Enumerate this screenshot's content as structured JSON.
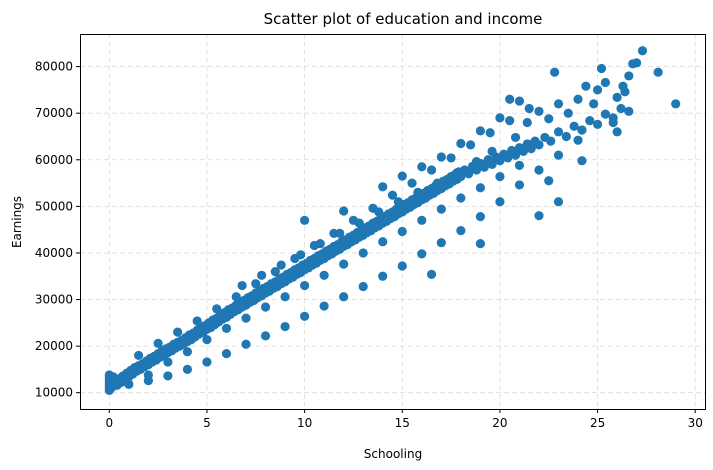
{
  "chart_data": {
    "type": "scatter",
    "title": "Scatter plot of education and income",
    "xlabel": "Schooling",
    "ylabel": "Earnings",
    "xlim": [
      -1.5,
      30.5
    ],
    "ylim": [
      6500,
      87000
    ],
    "xticks": [
      0,
      5,
      10,
      15,
      20,
      25,
      30
    ],
    "yticks": [
      10000,
      20000,
      30000,
      40000,
      50000,
      60000,
      70000,
      80000
    ],
    "grid": true,
    "color": "#1f77b4",
    "points": [
      [
        0,
        10500
      ],
      [
        0,
        11200
      ],
      [
        0,
        11800
      ],
      [
        0,
        12500
      ],
      [
        0,
        13200
      ],
      [
        0,
        13800
      ],
      [
        0.1,
        11000
      ],
      [
        0.1,
        12800
      ],
      [
        0.2,
        12000
      ],
      [
        0.2,
        13400
      ],
      [
        0.3,
        12600
      ],
      [
        0.4,
        11600
      ],
      [
        0.5,
        13000
      ],
      [
        0.6,
        12200
      ],
      [
        0.7,
        13600
      ],
      [
        0.8,
        12900
      ],
      [
        0.9,
        14200
      ],
      [
        1.0,
        13400
      ],
      [
        1.1,
        14800
      ],
      [
        1.2,
        14000
      ],
      [
        1.3,
        15400
      ],
      [
        1.4,
        14600
      ],
      [
        1.5,
        15800
      ],
      [
        1.6,
        15000
      ],
      [
        1.7,
        16200
      ],
      [
        1.8,
        15600
      ],
      [
        1.9,
        16800
      ],
      [
        2.0,
        16000
      ],
      [
        2.1,
        17400
      ],
      [
        2.2,
        16600
      ],
      [
        2.3,
        17800
      ],
      [
        2.4,
        17000
      ],
      [
        2.5,
        18400
      ],
      [
        2.6,
        17600
      ],
      [
        2.7,
        19000
      ],
      [
        2.8,
        18000
      ],
      [
        2.9,
        19400
      ],
      [
        3.0,
        18600
      ],
      [
        3.1,
        19800
      ],
      [
        3.2,
        19000
      ],
      [
        3.3,
        20400
      ],
      [
        3.4,
        19600
      ],
      [
        3.5,
        20800
      ],
      [
        3.6,
        20000
      ],
      [
        3.7,
        21200
      ],
      [
        3.8,
        20400
      ],
      [
        3.9,
        21800
      ],
      [
        4.0,
        21000
      ],
      [
        4.1,
        22400
      ],
      [
        4.2,
        21400
      ],
      [
        4.3,
        22800
      ],
      [
        4.4,
        22000
      ],
      [
        4.5,
        23400
      ],
      [
        4.6,
        22600
      ],
      [
        4.7,
        24000
      ],
      [
        4.8,
        23000
      ],
      [
        4.9,
        24400
      ],
      [
        5.0,
        23600
      ],
      [
        5.1,
        25000
      ],
      [
        5.2,
        24000
      ],
      [
        5.3,
        25600
      ],
      [
        5.4,
        24600
      ],
      [
        5.5,
        26000
      ],
      [
        5.6,
        25200
      ],
      [
        5.7,
        26600
      ],
      [
        5.8,
        25800
      ],
      [
        5.9,
        27200
      ],
      [
        6.0,
        26200
      ],
      [
        6.1,
        27800
      ],
      [
        6.2,
        26800
      ],
      [
        6.3,
        28200
      ],
      [
        6.4,
        27400
      ],
      [
        6.5,
        28800
      ],
      [
        6.6,
        27800
      ],
      [
        6.7,
        29400
      ],
      [
        6.8,
        28400
      ],
      [
        6.9,
        29800
      ],
      [
        7.0,
        28800
      ],
      [
        7.1,
        30400
      ],
      [
        7.2,
        29400
      ],
      [
        7.3,
        30800
      ],
      [
        7.4,
        29800
      ],
      [
        7.5,
        31400
      ],
      [
        7.6,
        30400
      ],
      [
        7.7,
        31800
      ],
      [
        7.8,
        30800
      ],
      [
        7.9,
        32400
      ],
      [
        8.0,
        31400
      ],
      [
        8.1,
        32800
      ],
      [
        8.2,
        31800
      ],
      [
        8.3,
        33400
      ],
      [
        8.4,
        32400
      ],
      [
        8.5,
        33800
      ],
      [
        8.6,
        32800
      ],
      [
        8.7,
        34400
      ],
      [
        8.8,
        33400
      ],
      [
        8.9,
        34800
      ],
      [
        9.0,
        33800
      ],
      [
        9.1,
        35400
      ],
      [
        9.2,
        34400
      ],
      [
        9.3,
        35800
      ],
      [
        9.4,
        34800
      ],
      [
        9.5,
        36400
      ],
      [
        9.6,
        35400
      ],
      [
        9.7,
        36800
      ],
      [
        9.8,
        35800
      ],
      [
        9.9,
        37400
      ],
      [
        10.0,
        36400
      ],
      [
        10.1,
        37800
      ],
      [
        10.2,
        36800
      ],
      [
        10.3,
        38400
      ],
      [
        10.4,
        37400
      ],
      [
        10.5,
        38800
      ],
      [
        10.6,
        37800
      ],
      [
        10.7,
        39400
      ],
      [
        10.8,
        38400
      ],
      [
        10.9,
        39800
      ],
      [
        11.0,
        38800
      ],
      [
        11.1,
        40400
      ],
      [
        11.2,
        39400
      ],
      [
        11.3,
        40800
      ],
      [
        11.4,
        39800
      ],
      [
        11.5,
        41400
      ],
      [
        11.6,
        40400
      ],
      [
        11.7,
        41800
      ],
      [
        11.8,
        40800
      ],
      [
        11.9,
        42400
      ],
      [
        12.0,
        41400
      ],
      [
        12.1,
        42800
      ],
      [
        12.2,
        41800
      ],
      [
        12.3,
        43400
      ],
      [
        12.4,
        42400
      ],
      [
        12.5,
        43800
      ],
      [
        12.6,
        42800
      ],
      [
        12.7,
        44400
      ],
      [
        12.8,
        43400
      ],
      [
        12.9,
        44800
      ],
      [
        13.0,
        43800
      ],
      [
        13.1,
        45400
      ],
      [
        13.2,
        44400
      ],
      [
        13.3,
        45800
      ],
      [
        13.4,
        44800
      ],
      [
        13.5,
        46400
      ],
      [
        13.6,
        45400
      ],
      [
        13.7,
        46800
      ],
      [
        13.8,
        45800
      ],
      [
        13.9,
        47400
      ],
      [
        14.0,
        46400
      ],
      [
        14.1,
        47800
      ],
      [
        14.2,
        46800
      ],
      [
        14.3,
        48400
      ],
      [
        14.4,
        47400
      ],
      [
        14.5,
        48800
      ],
      [
        14.6,
        47800
      ],
      [
        14.7,
        49400
      ],
      [
        14.8,
        48400
      ],
      [
        14.9,
        49800
      ],
      [
        15.0,
        48800
      ],
      [
        15.1,
        50400
      ],
      [
        15.2,
        49400
      ],
      [
        15.3,
        50800
      ],
      [
        15.4,
        49800
      ],
      [
        15.5,
        51400
      ],
      [
        15.6,
        50400
      ],
      [
        15.7,
        51800
      ],
      [
        15.8,
        50800
      ],
      [
        15.9,
        52400
      ],
      [
        16.0,
        51400
      ],
      [
        16.1,
        52800
      ],
      [
        16.2,
        51800
      ],
      [
        16.3,
        53400
      ],
      [
        16.4,
        52400
      ],
      [
        16.5,
        53800
      ],
      [
        16.6,
        52800
      ],
      [
        16.7,
        54400
      ],
      [
        16.8,
        53400
      ],
      [
        16.9,
        54800
      ],
      [
        17.0,
        53800
      ],
      [
        17.1,
        55400
      ],
      [
        17.2,
        54400
      ],
      [
        17.3,
        55800
      ],
      [
        17.4,
        54800
      ],
      [
        17.5,
        56400
      ],
      [
        17.6,
        55400
      ],
      [
        17.7,
        56800
      ],
      [
        17.8,
        55800
      ],
      [
        17.9,
        57400
      ],
      [
        18.0,
        56400
      ],
      [
        18.2,
        57800
      ],
      [
        18.4,
        57000
      ],
      [
        18.6,
        58600
      ],
      [
        18.8,
        57800
      ],
      [
        19.0,
        59200
      ],
      [
        19.2,
        58400
      ],
      [
        19.4,
        60000
      ],
      [
        19.6,
        59000
      ],
      [
        19.8,
        60600
      ],
      [
        20.0,
        59800
      ],
      [
        20.2,
        61200
      ],
      [
        20.4,
        60400
      ],
      [
        20.6,
        62000
      ],
      [
        20.8,
        61000
      ],
      [
        21.0,
        62600
      ],
      [
        21.2,
        61800
      ],
      [
        21.4,
        63400
      ],
      [
        21.6,
        62400
      ],
      [
        21.8,
        64000
      ],
      [
        22.0,
        63200
      ],
      [
        22.3,
        64800
      ],
      [
        22.6,
        64000
      ],
      [
        23.0,
        66000
      ],
      [
        23.4,
        65000
      ],
      [
        23.8,
        67200
      ],
      [
        24.2,
        66400
      ],
      [
        24.6,
        68400
      ],
      [
        25.0,
        67600
      ],
      [
        25.4,
        69800
      ],
      [
        25.8,
        69000
      ],
      [
        26.2,
        71000
      ],
      [
        26.6,
        70400
      ],
      [
        2.0,
        13800
      ],
      [
        3.0,
        16600
      ],
      [
        4.0,
        18800
      ],
      [
        5.0,
        21400
      ],
      [
        6.0,
        23800
      ],
      [
        7.0,
        26000
      ],
      [
        8.0,
        28400
      ],
      [
        9.0,
        30600
      ],
      [
        10.0,
        33000
      ],
      [
        11.0,
        35200
      ],
      [
        12.0,
        37600
      ],
      [
        13.0,
        40000
      ],
      [
        14.0,
        42400
      ],
      [
        15.0,
        44600
      ],
      [
        16.0,
        47000
      ],
      [
        17.0,
        49400
      ],
      [
        18.0,
        51800
      ],
      [
        19.0,
        54000
      ],
      [
        20.0,
        56400
      ],
      [
        21.0,
        58800
      ],
      [
        1.5,
        18000
      ],
      [
        2.5,
        20600
      ],
      [
        3.5,
        23000
      ],
      [
        4.5,
        25400
      ],
      [
        5.5,
        28000
      ],
      [
        6.5,
        30600
      ],
      [
        7.5,
        33400
      ],
      [
        8.5,
        36000
      ],
      [
        9.5,
        38800
      ],
      [
        10.5,
        41600
      ],
      [
        11.5,
        44200
      ],
      [
        12.5,
        47000
      ],
      [
        13.5,
        49600
      ],
      [
        14.5,
        52400
      ],
      [
        15.5,
        55000
      ],
      [
        16.5,
        57800
      ],
      [
        17.5,
        60400
      ],
      [
        18.5,
        63200
      ],
      [
        19.5,
        65800
      ],
      [
        20.5,
        68400
      ],
      [
        10.0,
        47000
      ],
      [
        12.0,
        49000
      ],
      [
        14.0,
        54200
      ],
      [
        15.0,
        56500
      ],
      [
        16.0,
        58500
      ],
      [
        17.0,
        60600
      ],
      [
        18.0,
        63500
      ],
      [
        19.0,
        66200
      ],
      [
        20.0,
        69000
      ],
      [
        20.5,
        73000
      ],
      [
        21.0,
        72600
      ],
      [
        21.5,
        71000
      ],
      [
        22.0,
        70400
      ],
      [
        22.5,
        68800
      ],
      [
        23.0,
        72000
      ],
      [
        23.5,
        70000
      ],
      [
        24.0,
        73000
      ],
      [
        24.4,
        75800
      ],
      [
        25.0,
        75000
      ],
      [
        25.4,
        76600
      ],
      [
        24.0,
        64200
      ],
      [
        23.0,
        61000
      ],
      [
        22.0,
        57800
      ],
      [
        21.0,
        54600
      ],
      [
        20.0,
        51000
      ],
      [
        19.0,
        47800
      ],
      [
        18.0,
        44800
      ],
      [
        17.0,
        42200
      ],
      [
        16.0,
        39800
      ],
      [
        15.0,
        37200
      ],
      [
        14.0,
        35000
      ],
      [
        13.0,
        32800
      ],
      [
        12.0,
        30600
      ],
      [
        11.0,
        28600
      ],
      [
        10.0,
        26400
      ],
      [
        9.0,
        24200
      ],
      [
        8.0,
        22200
      ],
      [
        7.0,
        20400
      ],
      [
        6.0,
        18400
      ],
      [
        5.0,
        16600
      ],
      [
        4.0,
        15000
      ],
      [
        3.0,
        13600
      ],
      [
        2.0,
        12600
      ],
      [
        1.0,
        11800
      ],
      [
        16.5,
        35400
      ],
      [
        19.0,
        42000
      ],
      [
        22.0,
        48000
      ],
      [
        23.0,
        51000
      ],
      [
        22.5,
        55500
      ],
      [
        24.2,
        59800
      ],
      [
        26.0,
        66000
      ],
      [
        26.4,
        74600
      ],
      [
        26.0,
        73400
      ],
      [
        26.6,
        78000
      ],
      [
        26.3,
        75800
      ],
      [
        26.8,
        80600
      ],
      [
        27.0,
        80800
      ],
      [
        27.3,
        83400
      ],
      [
        28.1,
        78800
      ],
      [
        29.0,
        72000
      ],
      [
        25.2,
        79600
      ],
      [
        24.8,
        72000
      ],
      [
        25.8,
        68000
      ],
      [
        22.8,
        78800
      ],
      [
        21.4,
        68000
      ],
      [
        20.8,
        64800
      ],
      [
        19.6,
        61800
      ],
      [
        18.8,
        59600
      ],
      [
        17.8,
        57200
      ],
      [
        16.8,
        55000
      ],
      [
        15.8,
        53000
      ],
      [
        14.8,
        51000
      ],
      [
        13.8,
        48800
      ],
      [
        12.8,
        46400
      ],
      [
        11.8,
        44200
      ],
      [
        10.8,
        42000
      ],
      [
        9.8,
        39600
      ],
      [
        8.8,
        37400
      ],
      [
        7.8,
        35200
      ],
      [
        6.8,
        33000
      ]
    ]
  }
}
